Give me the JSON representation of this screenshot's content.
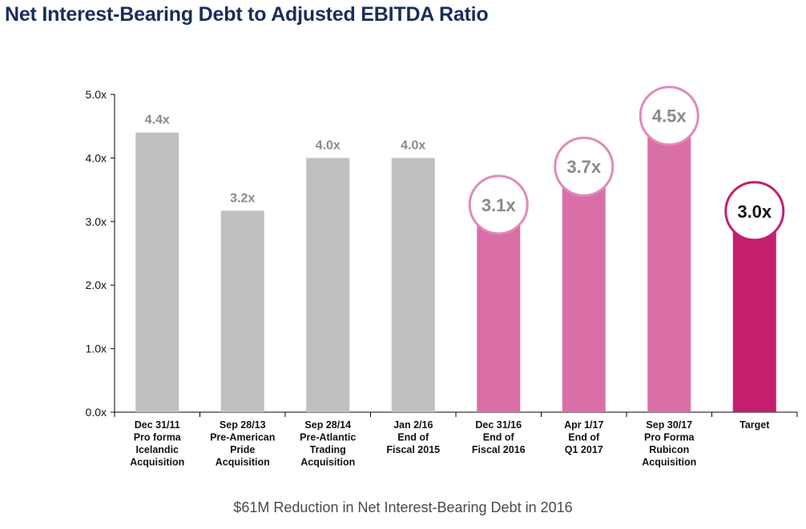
{
  "title": "Net Interest-Bearing Debt to Adjusted EBITDA Ratio",
  "footnote": "$61M Reduction in Net Interest-Bearing Debt in 2016",
  "colors": {
    "title": "#1a2d5a",
    "gray_bar": "#c0c0c0",
    "pink_bar": "#d96fa6",
    "target_bar": "#c41f6e",
    "circle_outline": "#e08ab8",
    "target_outline": "#c41f6e",
    "axis": "#000000",
    "value_text": "#8a8a8a"
  },
  "chart_data": {
    "type": "bar",
    "title": "Net Interest-Bearing Debt to Adjusted EBITDA Ratio",
    "xlabel": "",
    "ylabel": "",
    "ylim": [
      0,
      5
    ],
    "yticks": [
      "0.0x",
      "1.0x",
      "2.0x",
      "3.0x",
      "4.0x",
      "5.0x"
    ],
    "grid": false,
    "categories": [
      [
        "Dec 31/11",
        "Pro forma",
        "Icelandic",
        "Acquisition"
      ],
      [
        "Sep 28/13",
        "Pre-American",
        "Pride",
        "Acquisition"
      ],
      [
        "Sep 28/14",
        "Pre-Atlantic",
        "Trading",
        "Acquisition"
      ],
      [
        "Jan 2/16",
        "End of",
        "Fiscal 2015"
      ],
      [
        "Dec 31/16",
        "End of",
        "Fiscal 2016"
      ],
      [
        "Apr 1/17",
        "End of",
        "Q1 2017"
      ],
      [
        "Sep 30/17",
        "Pro Forma",
        "Rubicon",
        "Acquisition"
      ],
      [
        "Target"
      ]
    ],
    "values": [
      4.4,
      3.17,
      4.0,
      4.0,
      3.1,
      3.7,
      4.5,
      3.0
    ],
    "value_labels": [
      "4.4x",
      "3.2x",
      "4.0x",
      "4.0x",
      "3.1x",
      "3.7x",
      "4.5x",
      "3.0x"
    ],
    "bar_styles": [
      "gray",
      "gray",
      "gray",
      "gray",
      "pink",
      "pink",
      "pink",
      "target"
    ],
    "label_styles": [
      "plain",
      "plain",
      "plain",
      "plain",
      "circle",
      "circle",
      "circle",
      "target"
    ]
  }
}
